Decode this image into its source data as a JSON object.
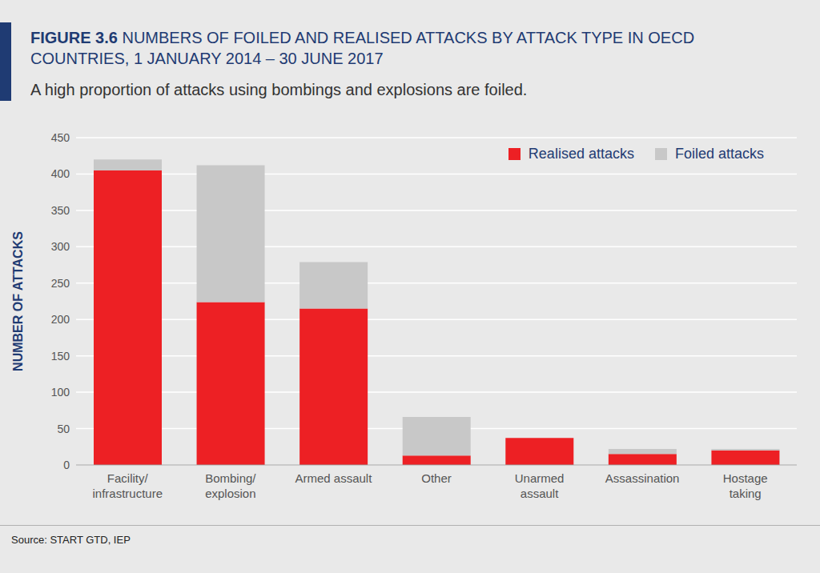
{
  "chart_data": {
    "type": "bar",
    "figure_label": "FIGURE 3.6",
    "title": "NUMBERS OF FOILED AND REALISED ATTACKS BY ATTACK TYPE IN OECD COUNTRIES, 1 JANUARY 2014 – 30 JUNE 2017",
    "subtitle": "A high proportion of attacks using bombings and explosions are foiled.",
    "y_label": "NUMBER OF ATTACKS",
    "source": "Source: START GTD, IEP",
    "categories": [
      "Facility/\ninfrastructure",
      "Bombing/\nexplosion",
      "Armed assault",
      "Other",
      "Unarmed\nassault",
      "Assassination",
      "Hostage\ntaking"
    ],
    "series": [
      {
        "name": "Realised attacks",
        "color": "#ed2024",
        "values": [
          405,
          224,
          215,
          13,
          37,
          15,
          20
        ]
      },
      {
        "name": "Foiled attacks",
        "color": "#c8c8c8",
        "values": [
          15,
          188,
          64,
          53,
          0,
          7,
          2
        ]
      }
    ],
    "ylim": [
      0,
      450
    ],
    "yticks": [
      0,
      50,
      100,
      150,
      200,
      250,
      300,
      350,
      400,
      450
    ],
    "grid": true,
    "stacked": true,
    "legend": "top right"
  }
}
